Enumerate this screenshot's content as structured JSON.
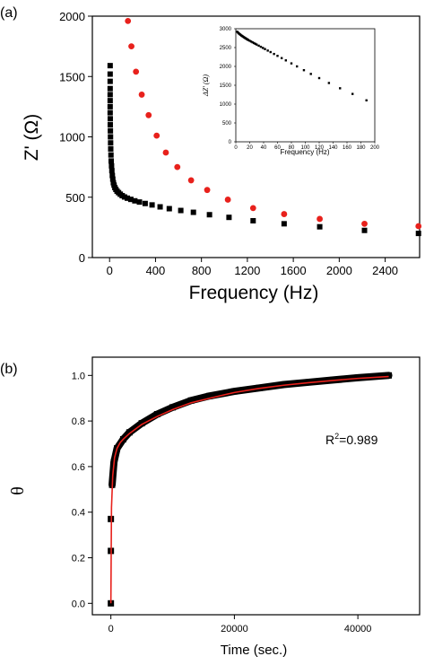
{
  "figure": {
    "panel_a_label": "(a)",
    "panel_b_label": "(b)",
    "inset_label": "inset"
  },
  "chart_data": [
    {
      "type": "scatter",
      "panel": "(a)",
      "xlabel": "Frequency (Hz)",
      "ylabel": "Z' (Ω)",
      "xlim": [
        -150,
        2700
      ],
      "ylim": [
        0,
        2000
      ],
      "xticks": [
        0,
        400,
        800,
        1200,
        1600,
        2000,
        2400
      ],
      "yticks": [
        0,
        500,
        1000,
        1500,
        2000
      ],
      "grid": false,
      "series": [
        {
          "color": "#e8211c",
          "marker": "circle",
          "x": [
            160,
            190,
            230,
            280,
            340,
            410,
            490,
            590,
            710,
            850,
            1030,
            1250,
            1520,
            1830,
            2220,
            2690
          ],
          "y": [
            1960,
            1750,
            1540,
            1350,
            1180,
            1010,
            870,
            750,
            640,
            560,
            480,
            410,
            360,
            320,
            280,
            260
          ]
        },
        {
          "color": "#000000",
          "marker": "square",
          "x": [
            5,
            5,
            5,
            5,
            5,
            5,
            5,
            5,
            6,
            6,
            7,
            8,
            9,
            10,
            12,
            14,
            17,
            20,
            24,
            28,
            33,
            39,
            46,
            55,
            65,
            78,
            93,
            110,
            130,
            155,
            185,
            220,
            260,
            310,
            370,
            440,
            520,
            620,
            730,
            870,
            1040,
            1250,
            1520,
            1830,
            2220,
            2690
          ],
          "y": [
            1590,
            1520,
            1460,
            1400,
            1350,
            1300,
            1250,
            1200,
            1150,
            1100,
            1050,
            1000,
            950,
            900,
            850,
            800,
            760,
            720,
            680,
            650,
            620,
            600,
            580,
            565,
            550,
            538,
            525,
            513,
            502,
            492,
            482,
            470,
            460,
            448,
            436,
            420,
            405,
            390,
            375,
            355,
            333,
            305,
            280,
            255,
            225,
            200
          ]
        }
      ]
    },
    {
      "type": "scatter",
      "panel": "inset",
      "xlabel": "Frequency (Hz)",
      "ylabel": "ΔZ' (Ω)",
      "xlim": [
        0,
        200
      ],
      "ylim": [
        0,
        3000
      ],
      "xticks": [
        0,
        20,
        40,
        60,
        80,
        100,
        120,
        140,
        160,
        180,
        200
      ],
      "yticks": [
        0,
        500,
        1000,
        1500,
        2000,
        2500,
        3000
      ],
      "series": [
        {
          "color": "#000000",
          "marker": "square",
          "x": [
            2,
            3,
            4,
            5,
            6,
            7,
            8,
            9,
            10,
            11,
            12,
            13,
            14,
            15,
            16,
            17,
            18,
            20,
            22,
            24,
            26,
            28,
            30,
            33,
            36,
            39,
            42,
            46,
            50,
            55,
            60,
            66,
            72,
            80,
            88,
            98,
            108,
            120,
            134,
            150,
            168,
            188
          ],
          "y": [
            2920,
            2900,
            2880,
            2865,
            2850,
            2835,
            2820,
            2808,
            2795,
            2783,
            2770,
            2758,
            2746,
            2735,
            2723,
            2712,
            2700,
            2680,
            2660,
            2640,
            2620,
            2600,
            2580,
            2550,
            2520,
            2490,
            2460,
            2420,
            2380,
            2330,
            2280,
            2220,
            2160,
            2080,
            2000,
            1900,
            1800,
            1690,
            1560,
            1420,
            1270,
            1100
          ]
        }
      ]
    },
    {
      "type": "line",
      "panel": "(b)",
      "xlabel": "Time (sec.)",
      "ylabel": "θ",
      "xlim": [
        -3000,
        50000
      ],
      "ylim": [
        -0.05,
        1.08
      ],
      "xticks": [
        0,
        20000,
        40000
      ],
      "yticks": [
        0.0,
        0.2,
        0.4,
        0.6,
        0.8,
        1.0
      ],
      "annotation": "R",
      "annotation_sup": "2",
      "annotation_value": "=0.989",
      "series": [
        {
          "color": "#000000",
          "marker": "square",
          "x": [
            0,
            0,
            0,
            200,
            500,
            1000,
            2000,
            3000,
            5000,
            7500,
            10000,
            13000,
            16000,
            20000,
            24000,
            28000,
            32000,
            36000,
            40000,
            45000
          ],
          "y": [
            0.0,
            0.23,
            0.37,
            0.52,
            0.62,
            0.68,
            0.72,
            0.75,
            0.79,
            0.83,
            0.86,
            0.89,
            0.91,
            0.93,
            0.945,
            0.96,
            0.97,
            0.98,
            0.99,
            1.0
          ]
        },
        {
          "color": "#e8211c",
          "x": [
            0,
            100,
            300,
            600,
            1000,
            1500,
            2000,
            3000,
            4000,
            5000,
            7500,
            10000,
            13000,
            16000,
            20000,
            24000,
            28000,
            32000,
            36000,
            40000,
            45000
          ],
          "y": [
            0.0,
            0.42,
            0.56,
            0.64,
            0.68,
            0.705,
            0.72,
            0.745,
            0.765,
            0.785,
            0.82,
            0.85,
            0.88,
            0.9,
            0.925,
            0.943,
            0.957,
            0.968,
            0.978,
            0.987,
            0.995
          ]
        }
      ]
    }
  ]
}
